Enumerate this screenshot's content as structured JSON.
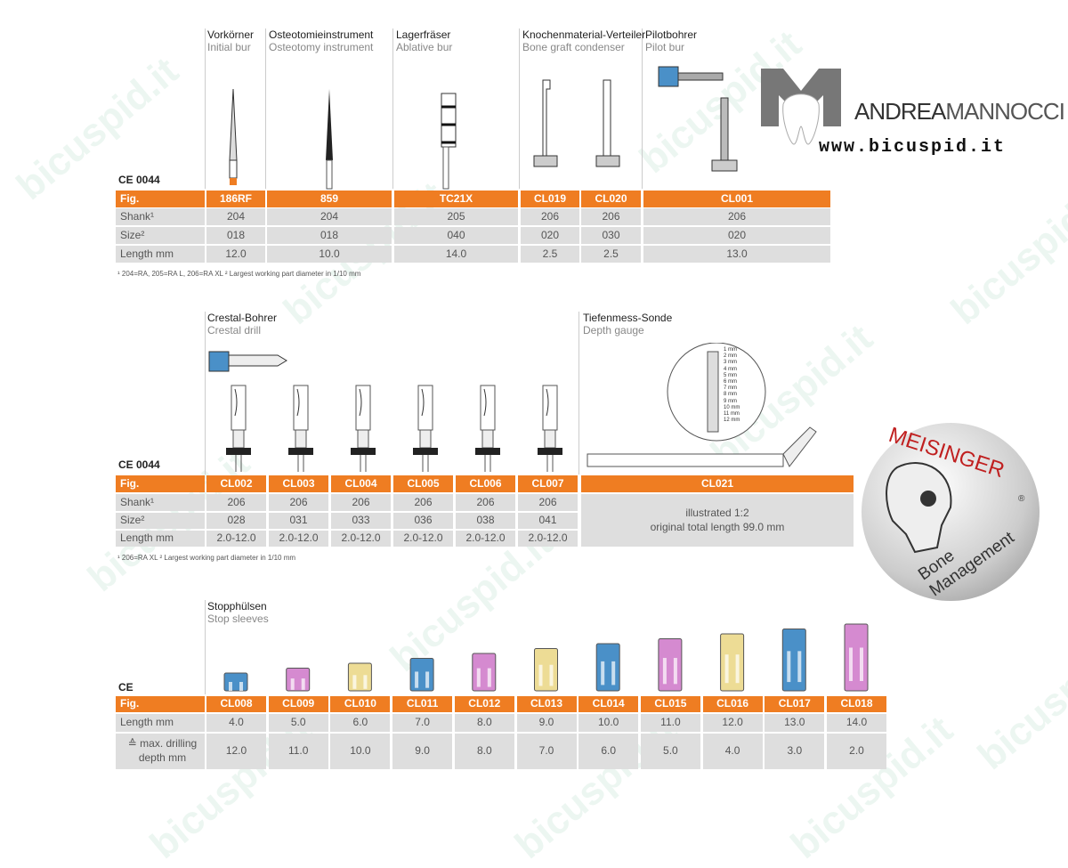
{
  "watermark": "bicuspid.it",
  "logo": {
    "name_part1": "ANDREA",
    "name_part2": "MANNOCCI",
    "url": "www.bicuspid.it"
  },
  "meisinger": {
    "brand": "MEISINGER",
    "tagline": "Bone Management",
    "reg": "®"
  },
  "ce1": "CE 0044",
  "ce2": "CE 0044",
  "ce3": "CE",
  "top": {
    "headers": [
      {
        "de": "Vorkörner",
        "en": "Initial bur"
      },
      {
        "de": "Osteotomieinstrument",
        "en": "Osteotomy instrument"
      },
      {
        "de": "Lagerfräser",
        "en": "Ablative bur"
      },
      {
        "de": "Knochenmaterial-Verteiler",
        "en": "Bone graft condenser"
      },
      {
        "de": "Pilotbohrer",
        "en": "Pilot bur"
      }
    ],
    "row_labels": [
      "Fig.",
      "Shank¹",
      "Size²",
      "Length mm"
    ],
    "columns": [
      [
        "186RF",
        "204",
        "018",
        "12.0"
      ],
      [
        "859",
        "204",
        "018",
        "10.0"
      ],
      [
        "TC21X",
        "205",
        "040",
        "14.0"
      ],
      [
        "CL019",
        "206",
        "020",
        "2.5"
      ],
      [
        "CL020",
        "206",
        "030",
        "2.5"
      ],
      [
        "CL001",
        "206",
        "020",
        "13.0"
      ]
    ],
    "footnote": "¹ 204=RA, 205=RA L, 206=RA XL  ² Largest working part diameter in 1/10 mm"
  },
  "middle": {
    "headers": [
      {
        "de": "Crestal-Bohrer",
        "en": "Crestal drill"
      },
      {
        "de": "Tiefenmess-Sonde",
        "en": "Depth gauge"
      }
    ],
    "row_labels": [
      "Fig.",
      "Shank¹",
      "Size²",
      "Length mm"
    ],
    "columns": [
      [
        "CL002",
        "206",
        "028",
        "2.0-12.0"
      ],
      [
        "CL003",
        "206",
        "031",
        "2.0-12.0"
      ],
      [
        "CL004",
        "206",
        "033",
        "2.0-12.0"
      ],
      [
        "CL005",
        "206",
        "036",
        "2.0-12.0"
      ],
      [
        "CL006",
        "206",
        "038",
        "2.0-12.0"
      ],
      [
        "CL007",
        "206",
        "041",
        "2.0-12.0"
      ]
    ],
    "gauge": {
      "fig": "CL021",
      "note1": "illustrated 1:2",
      "note2": "original total length 99.0 mm",
      "scale": [
        "1 mm",
        "2 mm",
        "3 mm",
        "4 mm",
        "5 mm",
        "6 mm",
        "7 mm",
        "8 mm",
        "9 mm",
        "10 mm",
        "11 mm",
        "12 mm"
      ]
    },
    "footnote": "¹ 206=RA XL  ² Largest working part diameter in 1/10 mm"
  },
  "bottom": {
    "header": {
      "de": "Stopphülsen",
      "en": "Stop sleeves"
    },
    "row_labels": [
      "Fig.",
      "Length mm",
      "≙ max. drilling depth mm"
    ],
    "columns": [
      [
        "CL008",
        "4.0",
        "12.0"
      ],
      [
        "CL009",
        "5.0",
        "11.0"
      ],
      [
        "CL010",
        "6.0",
        "10.0"
      ],
      [
        "CL011",
        "7.0",
        "9.0"
      ],
      [
        "CL012",
        "8.0",
        "8.0"
      ],
      [
        "CL013",
        "9.0",
        "7.0"
      ],
      [
        "CL014",
        "10.0",
        "6.0"
      ],
      [
        "CL015",
        "11.0",
        "5.0"
      ],
      [
        "CL016",
        "12.0",
        "4.0"
      ],
      [
        "CL017",
        "13.0",
        "3.0"
      ],
      [
        "CL018",
        "14.0",
        "2.0"
      ]
    ],
    "sleeve_colors": [
      "#4a90c8",
      "#d58ad0",
      "#eddc95",
      "#4a90c8",
      "#d58ad0",
      "#eddc95",
      "#4a90c8",
      "#d58ad0",
      "#eddc95",
      "#4a90c8",
      "#d58ad0"
    ]
  }
}
